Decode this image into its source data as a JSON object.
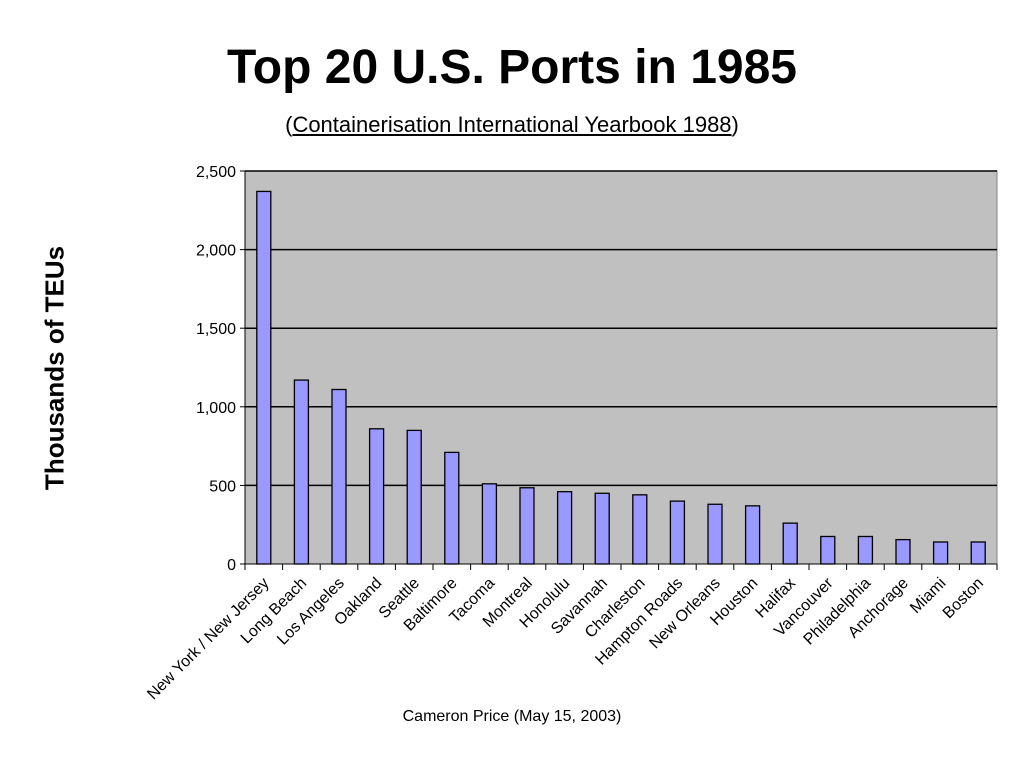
{
  "title": "Top 20 U.S. Ports in 1985",
  "subtitle": {
    "open": "(",
    "source": "Containerisation International Yearbook 1988",
    "close": ")"
  },
  "footer": "Cameron Price (May 15, 2003)",
  "colors": {
    "bar_fill": "#9999ff",
    "bar_stroke": "#000000",
    "plot_background": "#c0c0c0",
    "gridline": "#000000"
  },
  "chart_data": {
    "type": "bar",
    "title": "Top 20 U.S. Ports in 1985",
    "ylabel": "Thousands of TEUs",
    "xlabel": "",
    "ylim": [
      0,
      2500
    ],
    "yticks": [
      0,
      500,
      1000,
      1500,
      2000,
      2500
    ],
    "ytick_labels": [
      "0",
      "500",
      "1,000",
      "1,500",
      "2,000",
      "2,500"
    ],
    "grid": true,
    "categories": [
      "New York / New Jersey",
      "Long Beach",
      "Los Angeles",
      "Oakland",
      "Seattle",
      "Baltimore",
      "Tacoma",
      "Montreal",
      "Honolulu",
      "Savannah",
      "Charleston",
      "Hampton Roads",
      "New Orleans",
      "Houston",
      "Halifax",
      "Vancouver",
      "Philadelphia",
      "Anchorage",
      "Miami",
      "Boston"
    ],
    "values": [
      2370,
      1170,
      1110,
      860,
      850,
      710,
      510,
      485,
      460,
      450,
      440,
      400,
      380,
      370,
      260,
      175,
      175,
      155,
      140,
      140
    ]
  }
}
